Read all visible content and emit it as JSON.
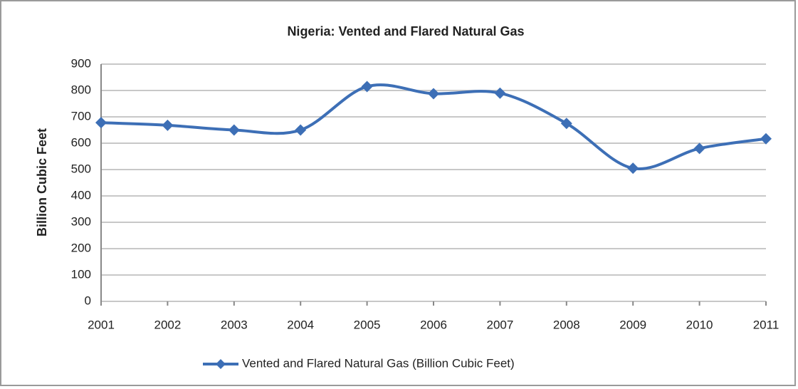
{
  "chart_data": {
    "type": "line",
    "title": "Nigeria: Vented and Flared Natural Gas",
    "y_label": "Billion Cubic Feet",
    "categories": [
      "2001",
      "2002",
      "2003",
      "2004",
      "2005",
      "2006",
      "2007",
      "2008",
      "2009",
      "2010",
      "2011"
    ],
    "series": [
      {
        "name": "Vented and Flared Natural Gas (Billion Cubic Feet)",
        "color": "#3d6fb6",
        "values": [
          678,
          668,
          650,
          650,
          815,
          788,
          790,
          675,
          505,
          580,
          617
        ]
      }
    ],
    "ylim": [
      0,
      900
    ],
    "yticks": [
      0,
      100,
      200,
      300,
      400,
      500,
      600,
      700,
      800,
      900
    ],
    "grid": true,
    "legend": "bottom"
  }
}
